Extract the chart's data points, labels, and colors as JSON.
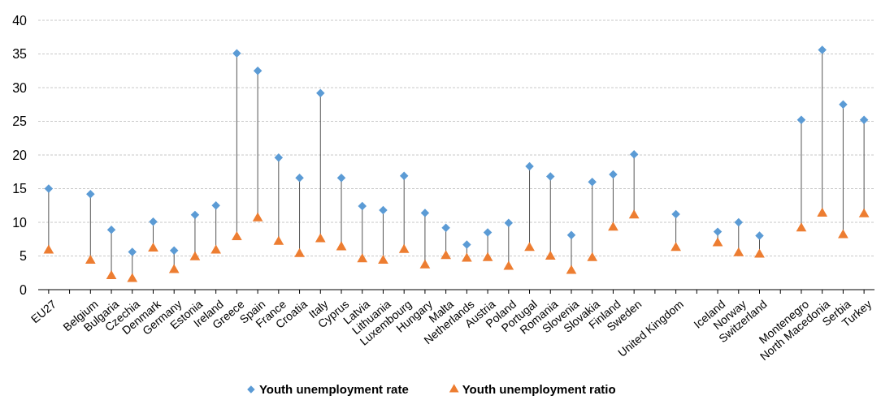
{
  "chart_data": {
    "type": "scatter",
    "categories": [
      "EU27",
      null,
      "Belgium",
      "Bulgaria",
      "Czechia",
      "Denmark",
      "Germany",
      "Estonia",
      "Ireland",
      "Greece",
      "Spain",
      "France",
      "Croatia",
      "Italy",
      "Cyprus",
      "Latvia",
      "Lithuania",
      "Luxembourg",
      "Hungary",
      "Malta",
      "Netherlands",
      "Austria",
      "Poland",
      "Portugal",
      "Romania",
      "Slovenia",
      "Slovakia",
      "Finland",
      "Sweden",
      null,
      "United Kingdom",
      null,
      "Iceland",
      "Norway",
      "Switzerland",
      null,
      "Montenegro",
      "North Macedonia",
      "Serbia",
      "Turkey"
    ],
    "series": [
      {
        "name": "Youth unemployment rate",
        "color": "#5b9bd5",
        "marker": "diamond",
        "values": [
          15.0,
          null,
          14.2,
          8.9,
          5.6,
          10.1,
          5.8,
          11.1,
          12.5,
          35.1,
          32.5,
          19.6,
          16.6,
          29.2,
          16.6,
          12.4,
          11.8,
          16.9,
          11.4,
          9.2,
          6.7,
          8.5,
          9.9,
          18.3,
          16.8,
          8.1,
          16.0,
          17.1,
          20.1,
          null,
          11.2,
          null,
          8.6,
          10.0,
          8.0,
          null,
          25.2,
          35.6,
          27.5,
          25.2
        ]
      },
      {
        "name": "Youth unemployment ratio",
        "color": "#ed7d31",
        "marker": "triangle",
        "values": [
          5.8,
          null,
          4.3,
          2.0,
          1.6,
          6.1,
          2.9,
          4.8,
          5.8,
          7.8,
          10.6,
          7.1,
          5.3,
          7.5,
          6.3,
          4.5,
          4.3,
          5.9,
          3.6,
          5.0,
          4.6,
          4.7,
          3.4,
          6.2,
          4.9,
          2.8,
          4.7,
          9.2,
          11.0,
          null,
          6.2,
          null,
          6.9,
          5.4,
          5.2,
          null,
          9.1,
          11.3,
          8.1,
          11.2
        ]
      }
    ],
    "ylim": [
      0,
      40
    ],
    "yticks": [
      0,
      5,
      10,
      15,
      20,
      25,
      30,
      35,
      40
    ],
    "grid": "y",
    "legend": "bottom"
  }
}
